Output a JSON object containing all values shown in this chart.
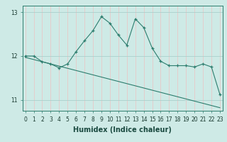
{
  "xlabel": "Humidex (Indice chaleur)",
  "x_values": [
    0,
    1,
    2,
    3,
    4,
    5,
    6,
    7,
    8,
    9,
    10,
    11,
    12,
    13,
    14,
    15,
    16,
    17,
    18,
    19,
    20,
    21,
    22,
    23
  ],
  "y_main": [
    12.0,
    12.0,
    11.87,
    11.82,
    11.73,
    11.82,
    12.1,
    12.35,
    12.58,
    12.9,
    12.75,
    12.48,
    12.25,
    12.85,
    12.65,
    12.18,
    11.88,
    11.78,
    11.78,
    11.78,
    11.75,
    11.82,
    11.75,
    11.12
  ],
  "y_trend": [
    11.97,
    11.92,
    11.87,
    11.82,
    11.77,
    11.72,
    11.67,
    11.62,
    11.57,
    11.52,
    11.47,
    11.42,
    11.37,
    11.32,
    11.27,
    11.22,
    11.17,
    11.12,
    11.07,
    11.02,
    10.97,
    10.92,
    10.87,
    10.82
  ],
  "ylim": [
    10.75,
    13.15
  ],
  "yticks": [
    11,
    12,
    13
  ],
  "xticks": [
    0,
    1,
    2,
    3,
    4,
    5,
    6,
    7,
    8,
    9,
    10,
    11,
    12,
    13,
    14,
    15,
    16,
    17,
    18,
    19,
    20,
    21,
    22,
    23
  ],
  "line_color": "#2d7d6e",
  "bg_color": "#ceeae6",
  "grid_color": "#aacfcb",
  "grid_vcolor": "#e8c8c8",
  "tick_label_fontsize": 5.5,
  "xlabel_fontsize": 7.0,
  "xlabel_fontweight": "bold"
}
